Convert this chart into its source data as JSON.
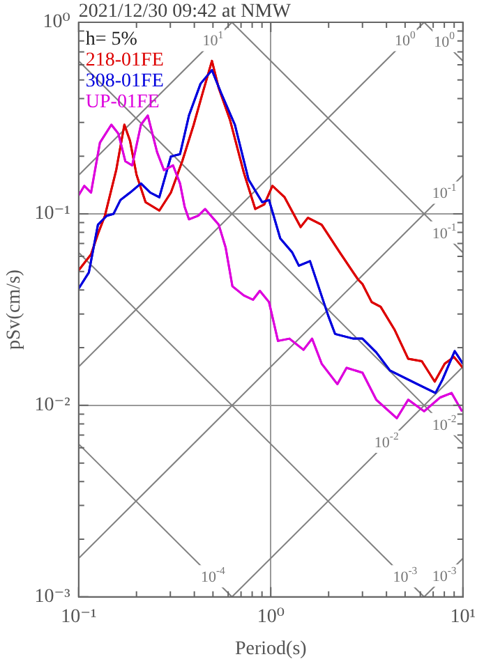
{
  "chart_data": {
    "type": "line",
    "title": "2021/12/30 09:42 at NMW",
    "xlabel": "Period(s)",
    "ylabel": "pSv(cm/s)",
    "log": "xy",
    "grid": true,
    "legend": "top left",
    "marker": "none",
    "line_style": "solid",
    "xlim": [
      0.1,
      10
    ],
    "ylim": [
      0.001,
      1
    ],
    "xticks": [
      {
        "value": 0.1,
        "label": "10⁻¹"
      },
      {
        "value": 0.2,
        "label": null
      },
      {
        "value": 0.3,
        "label": null
      },
      {
        "value": 0.4,
        "label": null
      },
      {
        "value": 0.5,
        "label": null
      },
      {
        "value": 0.6,
        "label": null
      },
      {
        "value": 0.7,
        "label": null
      },
      {
        "value": 0.8,
        "label": null
      },
      {
        "value": 0.9,
        "label": null
      },
      {
        "value": 1,
        "label": "10⁰"
      },
      {
        "value": 2,
        "label": null
      },
      {
        "value": 3,
        "label": null
      },
      {
        "value": 4,
        "label": null
      },
      {
        "value": 5,
        "label": null
      },
      {
        "value": 6,
        "label": null
      },
      {
        "value": 7,
        "label": null
      },
      {
        "value": 8,
        "label": null
      },
      {
        "value": 9,
        "label": null
      },
      {
        "value": 10,
        "label": "10¹"
      }
    ],
    "yticks": [
      {
        "value": 0.001,
        "label": "10⁻³"
      },
      {
        "value": 0.002,
        "label": null
      },
      {
        "value": 0.003,
        "label": null
      },
      {
        "value": 0.004,
        "label": null
      },
      {
        "value": 0.005,
        "label": null
      },
      {
        "value": 0.006,
        "label": null
      },
      {
        "value": 0.007,
        "label": null
      },
      {
        "value": 0.008,
        "label": null
      },
      {
        "value": 0.009,
        "label": null
      },
      {
        "value": 0.01,
        "label": "10⁻²"
      },
      {
        "value": 0.02,
        "label": null
      },
      {
        "value": 0.03,
        "label": null
      },
      {
        "value": 0.04,
        "label": null
      },
      {
        "value": 0.05,
        "label": null
      },
      {
        "value": 0.06,
        "label": null
      },
      {
        "value": 0.07,
        "label": null
      },
      {
        "value": 0.08,
        "label": null
      },
      {
        "value": 0.09,
        "label": null
      },
      {
        "value": 0.1,
        "label": "10⁻¹"
      },
      {
        "value": 0.2,
        "label": null
      },
      {
        "value": 0.3,
        "label": null
      },
      {
        "value": 0.4,
        "label": null
      },
      {
        "value": 0.5,
        "label": null
      },
      {
        "value": 0.6,
        "label": null
      },
      {
        "value": 0.7,
        "label": null
      },
      {
        "value": 0.8,
        "label": null
      },
      {
        "value": 0.9,
        "label": null
      },
      {
        "value": 1,
        "label": "10⁰"
      }
    ],
    "series": [
      {
        "color": "#808080",
        "x": [
          0.1,
          0.628
        ],
        "values": [
          0.159,
          1
        ]
      },
      {
        "color": "#808080",
        "x": [
          0.1,
          6.28
        ],
        "values": [
          0.0159,
          1
        ]
      },
      {
        "color": "#808080",
        "x": [
          0.1,
          10
        ],
        "values": [
          0.00159,
          0.159
        ]
      },
      {
        "color": "#808080",
        "x": [
          0.628,
          10
        ],
        "values": [
          0.001,
          0.0159
        ]
      },
      {
        "color": "#808080",
        "x": [
          6.28,
          10
        ],
        "values": [
          0.001,
          0.00159
        ]
      },
      {
        "color": "#808080",
        "x": [
          6.28,
          10
        ],
        "values": [
          1,
          0.628
        ]
      },
      {
        "color": "#808080",
        "x": [
          0.628,
          10
        ],
        "values": [
          1,
          0.0628
        ]
      },
      {
        "color": "#808080",
        "x": [
          0.1,
          10
        ],
        "values": [
          0.628,
          0.00628
        ]
      },
      {
        "color": "#808080",
        "x": [
          0.1,
          6.28
        ],
        "values": [
          0.0628,
          0.001
        ]
      },
      {
        "color": "#808080",
        "x": [
          0.1,
          0.628
        ],
        "values": [
          0.00628,
          0.001
        ]
      },
      {
        "name": "218-01FE",
        "color": "#dd0000",
        "x": [
          0.1,
          0.116,
          0.126,
          0.137,
          0.157,
          0.173,
          0.185,
          0.2,
          0.223,
          0.263,
          0.302,
          0.346,
          0.397,
          0.442,
          0.494,
          0.536,
          0.614,
          0.724,
          0.83,
          0.925,
          1.02,
          1.18,
          1.43,
          1.56,
          1.84,
          2.28,
          2.84,
          3.0,
          3.35,
          3.73,
          4.4,
          5.19,
          6.11,
          7.13,
          8.04,
          8.98,
          10
        ],
        "values": [
          0.0507,
          0.0614,
          0.0785,
          0.0977,
          0.17,
          0.292,
          0.241,
          0.16,
          0.115,
          0.104,
          0.129,
          0.188,
          0.292,
          0.428,
          0.629,
          0.453,
          0.308,
          0.164,
          0.106,
          0.112,
          0.14,
          0.122,
          0.0853,
          0.0953,
          0.0877,
          0.0631,
          0.0455,
          0.043,
          0.0346,
          0.0327,
          0.0249,
          0.0175,
          0.017,
          0.0133,
          0.0165,
          0.0179,
          0.0157
        ]
      },
      {
        "name": "308-01FE",
        "color": "#0000dd",
        "x": [
          0.1,
          0.113,
          0.126,
          0.14,
          0.152,
          0.165,
          0.185,
          0.211,
          0.236,
          0.263,
          0.302,
          0.337,
          0.375,
          0.431,
          0.494,
          0.551,
          0.65,
          0.766,
          0.902,
          0.979,
          1.12,
          1.29,
          1.4,
          1.6,
          1.99,
          2.16,
          2.69,
          3.0,
          3.54,
          4.17,
          5.79,
          7.2,
          7.82,
          9.06,
          10
        ],
        "values": [
          0.0407,
          0.0494,
          0.0877,
          0.0977,
          0.1,
          0.118,
          0.129,
          0.144,
          0.129,
          0.122,
          0.199,
          0.205,
          0.326,
          0.478,
          0.563,
          0.428,
          0.292,
          0.151,
          0.115,
          0.118,
          0.0744,
          0.0631,
          0.0536,
          0.0566,
          0.0294,
          0.0236,
          0.0223,
          0.0223,
          0.0189,
          0.0152,
          0.0129,
          0.0116,
          0.0136,
          0.0192,
          0.0165
        ]
      },
      {
        "name": "UP-01FE",
        "color": "#dd00dd",
        "x": [
          0.1,
          0.107,
          0.116,
          0.129,
          0.148,
          0.161,
          0.175,
          0.19,
          0.211,
          0.229,
          0.256,
          0.278,
          0.31,
          0.337,
          0.356,
          0.375,
          0.419,
          0.455,
          0.536,
          0.582,
          0.631,
          0.724,
          0.808,
          0.877,
          0.979,
          1.09,
          1.25,
          1.48,
          1.64,
          1.84,
          2.22,
          2.48,
          3.0,
          3.54,
          4.53,
          5.19,
          6.28,
          7.62,
          8.73,
          9.9
        ],
        "values": [
          0.125,
          0.14,
          0.129,
          0.235,
          0.292,
          0.262,
          0.188,
          0.179,
          0.292,
          0.326,
          0.21,
          0.169,
          0.179,
          0.144,
          0.109,
          0.0936,
          0.0977,
          0.106,
          0.0877,
          0.0667,
          0.0419,
          0.0375,
          0.0356,
          0.0396,
          0.0346,
          0.0217,
          0.0223,
          0.0195,
          0.0223,
          0.0165,
          0.0129,
          0.0157,
          0.0148,
          0.0107,
          0.00857,
          0.0107,
          0.00931,
          0.011,
          0.0116,
          0.00931
        ]
      }
    ],
    "annotations": [
      "h= 5%",
      {
        "text": "10$^{1}$",
        "x": 0.5,
        "y": 0.795
      },
      {
        "text": "10$^{0}$",
        "x": 5,
        "y": 0.795
      },
      {
        "text": "10$^{0}$",
        "x": 8,
        "y": 0.785
      },
      {
        "text": "10$^{-1}$",
        "x": 8,
        "y": 0.127
      },
      {
        "text": "10$^{-1}$",
        "x": 8,
        "y": 0.0785
      },
      {
        "text": "10$^{-2}$",
        "x": 4,
        "y": 0.00636
      },
      {
        "text": "10$^{-2}$",
        "x": 8,
        "y": 0.00785
      },
      {
        "text": "10$^{-3}$",
        "x": 8,
        "y": 0.00127
      },
      {
        "text": "10$^{-3}$",
        "x": 5,
        "y": 0.00126
      },
      {
        "text": "10$^{-4}$",
        "x": 0.5,
        "y": 0.00126
      }
    ]
  }
}
